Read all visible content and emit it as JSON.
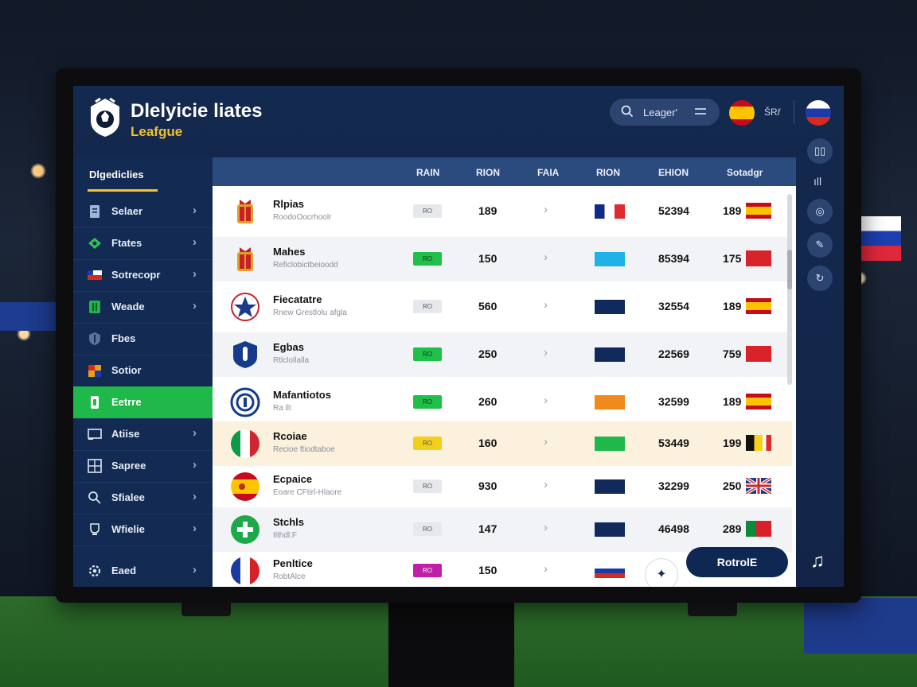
{
  "header": {
    "title_line1": "Dlelyicie liates",
    "title_line2": "Leafgue",
    "search_text": "Leager'",
    "lang_label": "ŠRř"
  },
  "sidebar": {
    "heading": "Dlgediclies",
    "items": [
      {
        "label": "Selaer",
        "icon": "document-icon",
        "active": false
      },
      {
        "label": "Ftates",
        "icon": "football-pitch-icon",
        "active": false
      },
      {
        "label": "Sotrecopr",
        "icon": "flag-icon",
        "active": false
      },
      {
        "label": "Weade",
        "icon": "grid-icon",
        "active": false
      },
      {
        "label": "Fbes",
        "icon": "shield-icon",
        "active": false
      },
      {
        "label": "Sotior",
        "icon": "calendar-icon",
        "active": false
      },
      {
        "label": "Eetrre",
        "icon": "phone-icon",
        "active": true
      },
      {
        "label": "Atiise",
        "icon": "monitor-icon",
        "active": false
      },
      {
        "label": "Sapree",
        "icon": "table-icon",
        "active": false
      },
      {
        "label": "Sfialee",
        "icon": "search-icon",
        "active": false
      },
      {
        "label": "Wfielie",
        "icon": "trophy-icon",
        "active": false
      },
      {
        "label": "Eaed",
        "icon": "settings-icon",
        "active": false
      }
    ]
  },
  "table": {
    "headers": [
      "RAIN",
      "RION",
      "FAIA",
      "RION",
      "EHION",
      "Sotadgr"
    ],
    "rows": [
      {
        "name": "Rlpias",
        "sub": "RoodoOocrhoolr",
        "pill": "RO",
        "pill_color": "#e6e8eb",
        "v1": "189",
        "flag": "fr",
        "v2": "52394",
        "v3": "189",
        "flag2": "es",
        "style": ""
      },
      {
        "name": "Mahes",
        "sub": "Reficlobictbeioodd",
        "pill": "RO",
        "pill_color": "#1fbf4a",
        "v1": "150",
        "flag": "cyan",
        "v2": "85394",
        "v3": "175",
        "flag2": "red",
        "style": "alt"
      },
      {
        "name": "Fiecatatre",
        "sub": "Rnew Grestlolu afgla",
        "pill": "RO",
        "pill_color": "#e6e8eb",
        "v1": "560",
        "flag": "navy",
        "v2": "32554",
        "v3": "189",
        "flag2": "es",
        "style": ""
      },
      {
        "name": "Egbas",
        "sub": "Rtlclollalla",
        "pill": "RO",
        "pill_color": "#1fbf4a",
        "v1": "250",
        "flag": "navy",
        "v2": "22569",
        "v3": "759",
        "flag2": "red",
        "style": "alt"
      },
      {
        "name": "Mafantiotos",
        "sub": "Ra llt",
        "pill": "RO",
        "pill_color": "#1fbf4a",
        "v1": "260",
        "flag": "orange",
        "v2": "32599",
        "v3": "189",
        "flag2": "es",
        "style": ""
      },
      {
        "name": "Rcoiae",
        "sub": "Recioe ftiodtaboe",
        "pill": "RO",
        "pill_color": "#f2cf1c",
        "v1": "160",
        "flag": "green",
        "v2": "53449",
        "v3": "199",
        "flag2": "be",
        "style": "hl"
      },
      {
        "name": "Ecpaice",
        "sub": "Eoare CFtirl-Hlaore",
        "pill": "RO",
        "pill_color": "#e6e8eb",
        "v1": "930",
        "flag": "navy",
        "v2": "32299",
        "v3": "250",
        "flag2": "uk",
        "style": ""
      },
      {
        "name": "Stchls",
        "sub": "Ilthdl:F",
        "pill": "RO",
        "pill_color": "#e6e8eb",
        "v1": "147",
        "flag": "navy",
        "v2": "46498",
        "v3": "289",
        "flag2": "pt",
        "style": "alt"
      },
      {
        "name": "Penltice",
        "sub": "RobtAlce",
        "pill": "RO",
        "pill_color": "#c21fa8",
        "v1": "150",
        "flag": "ru",
        "v2": "",
        "v3": "",
        "flag2": "",
        "style": ""
      }
    ]
  },
  "actions": {
    "primary_label": "RotrolE"
  },
  "colors": {
    "accent_green": "#1fb84a",
    "accent_yellow": "#f2c230",
    "navy": "#0f2753"
  },
  "rail": {
    "icons": [
      "book-icon",
      "bar-chart-icon",
      "globe-icon",
      "chat-icon",
      "refresh-icon",
      "music-icon"
    ]
  }
}
